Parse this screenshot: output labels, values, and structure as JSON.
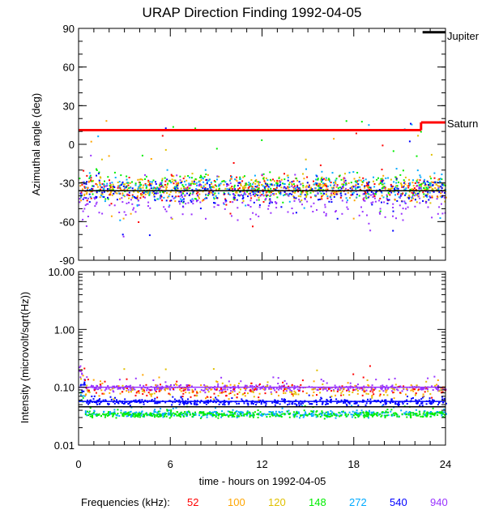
{
  "chart_data": [
    {
      "type": "scatter",
      "title": "URAP Direction Finding  1992-04-05",
      "xlabel": "",
      "ylabel": "Azimuthal angle (deg)",
      "xlim": [
        0,
        24
      ],
      "ylim": [
        -90,
        90
      ],
      "yticks": [
        -90,
        -60,
        -30,
        0,
        30,
        60,
        90
      ],
      "ytick_labels": [
        "-90",
        "-60",
        "-30",
        "0",
        "30",
        "60",
        "90"
      ],
      "reference_lines": [
        {
          "name": "Jupiter",
          "color": "#000000",
          "segments": [
            {
              "x": [
                22.5,
                24
              ],
              "y": 87
            }
          ]
        },
        {
          "name": "Saturn",
          "color": "#ff0000",
          "segments": [
            {
              "x": [
                0,
                22.4
              ],
              "y": 11
            },
            {
              "x": [
                22.4,
                24
              ],
              "y": 17
            }
          ]
        },
        {
          "name": "Sun reference",
          "color": "#000000",
          "segments": [
            {
              "x": [
                0,
                24
              ],
              "y": -36
            }
          ]
        }
      ],
      "series_summary": [
        {
          "frequency_khz": 52,
          "center": -34,
          "spread": 8
        },
        {
          "frequency_khz": 100,
          "center": -34,
          "spread": 8
        },
        {
          "frequency_khz": 120,
          "center": -33,
          "spread": 8
        },
        {
          "frequency_khz": 148,
          "center": -32,
          "spread": 9
        },
        {
          "frequency_khz": 272,
          "center": -33,
          "spread": 11
        },
        {
          "frequency_khz": 540,
          "center": -36,
          "spread": 10
        },
        {
          "frequency_khz": 940,
          "center": -42,
          "spread": 14
        }
      ]
    },
    {
      "type": "line",
      "title": "",
      "xlabel": "time - hours on 1992-04-05",
      "ylabel": "Intensity (microvolt/sqrt(Hz))",
      "xlim": [
        0,
        24
      ],
      "xticks": [
        0,
        6,
        12,
        18,
        24
      ],
      "xtick_labels": [
        "0",
        "6",
        "12",
        "18",
        "24"
      ],
      "yscale": "log",
      "ylim": [
        0.01,
        10
      ],
      "yticks": [
        0.01,
        0.1,
        1,
        10
      ],
      "ytick_labels": [
        "0.01",
        "0.10",
        "1.00",
        "10.00"
      ],
      "reference_lines": [
        {
          "name": "background 940 kHz",
          "color": "#9933ff",
          "y": 0.1
        },
        {
          "name": "background 540 kHz",
          "color": "#0000ff",
          "y": 0.057
        },
        {
          "name": "background 272 kHz",
          "color": "#000000",
          "y": 0.046
        }
      ],
      "series_summary": [
        {
          "frequency_khz": 940,
          "level": 0.1,
          "peak": 0.16
        },
        {
          "frequency_khz": 540,
          "level": 0.057,
          "peak": 0.075
        },
        {
          "frequency_khz": 272,
          "level": 0.036,
          "peak": 0.05
        },
        {
          "frequency_khz": 148,
          "level": 0.035,
          "peak": 0.05
        },
        {
          "frequency_khz": 120,
          "level": 0.09,
          "peak": 0.22
        },
        {
          "frequency_khz": 100,
          "level": 0.09,
          "peak": 0.2
        },
        {
          "frequency_khz": 52,
          "level": 0.09,
          "peak": 0.3
        }
      ]
    }
  ],
  "legend": {
    "label": "Frequencies (kHz):",
    "items": [
      {
        "label": "52",
        "color": "#ff0000"
      },
      {
        "label": "100",
        "color": "#ffa500"
      },
      {
        "label": "120",
        "color": "#e0c000"
      },
      {
        "label": "148",
        "color": "#00ee00"
      },
      {
        "label": "272",
        "color": "#00aaff"
      },
      {
        "label": "540",
        "color": "#0000ff"
      },
      {
        "label": "940",
        "color": "#9933ff"
      }
    ]
  },
  "annotations": {
    "jupiter": "Jupiter",
    "saturn": "Saturn"
  }
}
